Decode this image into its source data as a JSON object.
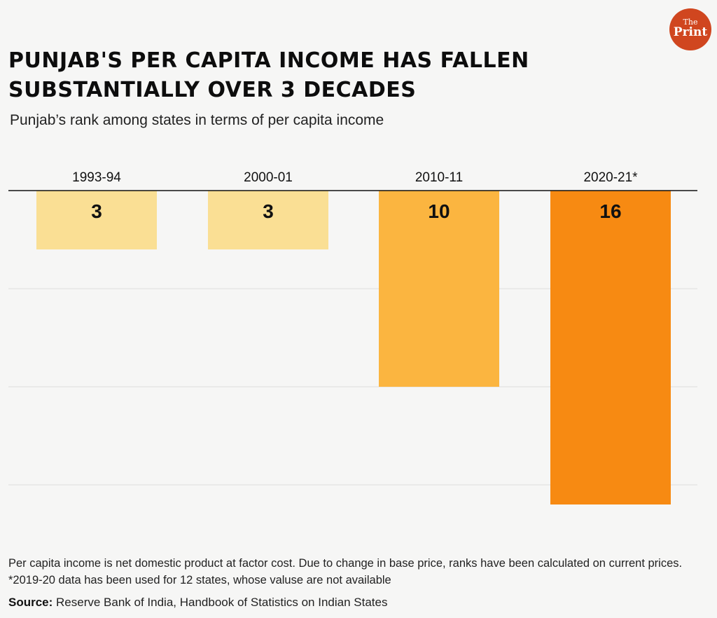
{
  "brand": {
    "logo_text": "The Print",
    "color": "#d0461f"
  },
  "chart_data": {
    "type": "bar",
    "title": "PUNJAB'S PER CAPITA INCOME HAS FALLEN SUBSTANTIALLY OVER 3 DECADES",
    "subtitle": "Punjab’s rank among states in terms of per capita income",
    "categories": [
      "1993-94",
      "2000-01",
      "2010-11",
      "2020-21*"
    ],
    "values": [
      3,
      3,
      10,
      16
    ],
    "value_labels": [
      "3",
      "3",
      "10",
      "16"
    ],
    "colors": [
      "#fadf94",
      "#fadf94",
      "#fbb540",
      "#f78a12"
    ],
    "orientation": "downward from top baseline",
    "ylim": [
      0,
      18
    ],
    "gridlines": [
      5,
      10,
      15
    ],
    "grid": true,
    "xlabel": "",
    "ylabel": ""
  },
  "footnote": "Per capita income is net domestic product at factor cost. Due to change in base price, ranks have been calculated on current prices. *2019-20 data has been used for 12 states, whose valuse are not available",
  "source": {
    "label": "Source:",
    "text": "Reserve Bank of India, Handbook of Statistics on Indian States"
  }
}
